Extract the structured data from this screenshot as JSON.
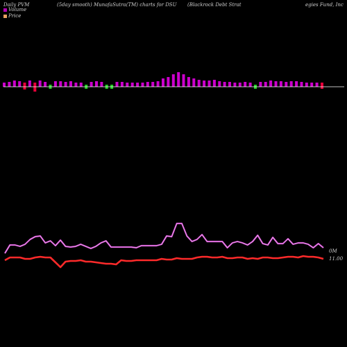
{
  "header": {
    "left": "Daily PVM",
    "mid": "(5day smooth) MunafaSutra(TM) charts for DSU",
    "right": "(Blackrock Debt Strat",
    "right2": "egies Fund, Inc"
  },
  "legend": {
    "items": [
      {
        "label": "Volume",
        "color": "#b400b4"
      },
      {
        "label": "Price",
        "color": "#e8a060"
      }
    ]
  },
  "chart_data": [
    {
      "type": "bar",
      "title": "",
      "ylabel": "",
      "xlabel": "",
      "baseline_color": "#ffffff",
      "colors": {
        "up": "#cc00cc",
        "down_red": "#e8003a",
        "down_green": "#22cc22"
      },
      "bars": [
        {
          "v": 6,
          "c": "up"
        },
        {
          "v": 7,
          "c": "up"
        },
        {
          "v": 9,
          "c": "up"
        },
        {
          "v": 8,
          "c": "up"
        },
        {
          "v": 10,
          "c": "down_red"
        },
        {
          "v": 9,
          "c": "up"
        },
        {
          "v": 13,
          "c": "down_red"
        },
        {
          "v": 9,
          "c": "up"
        },
        {
          "v": 7,
          "c": "up"
        },
        {
          "v": 6,
          "c": "down_green"
        },
        {
          "v": 8,
          "c": "up"
        },
        {
          "v": 8,
          "c": "up"
        },
        {
          "v": 7,
          "c": "up"
        },
        {
          "v": 8,
          "c": "up"
        },
        {
          "v": 6,
          "c": "up"
        },
        {
          "v": 6,
          "c": "up"
        },
        {
          "v": 6,
          "c": "down_green"
        },
        {
          "v": 7,
          "c": "up"
        },
        {
          "v": 8,
          "c": "up"
        },
        {
          "v": 7,
          "c": "up"
        },
        {
          "v": 6,
          "c": "down_green"
        },
        {
          "v": 6,
          "c": "down_green"
        },
        {
          "v": 7,
          "c": "up"
        },
        {
          "v": 7,
          "c": "up"
        },
        {
          "v": 6,
          "c": "up"
        },
        {
          "v": 6,
          "c": "up"
        },
        {
          "v": 6,
          "c": "up"
        },
        {
          "v": 6,
          "c": "up"
        },
        {
          "v": 7,
          "c": "up"
        },
        {
          "v": 7,
          "c": "up"
        },
        {
          "v": 8,
          "c": "up"
        },
        {
          "v": 12,
          "c": "up"
        },
        {
          "v": 14,
          "c": "up"
        },
        {
          "v": 18,
          "c": "up"
        },
        {
          "v": 21,
          "c": "up"
        },
        {
          "v": 18,
          "c": "up"
        },
        {
          "v": 14,
          "c": "up"
        },
        {
          "v": 12,
          "c": "up"
        },
        {
          "v": 10,
          "c": "up"
        },
        {
          "v": 9,
          "c": "up"
        },
        {
          "v": 9,
          "c": "up"
        },
        {
          "v": 10,
          "c": "up"
        },
        {
          "v": 8,
          "c": "up"
        },
        {
          "v": 7,
          "c": "up"
        },
        {
          "v": 7,
          "c": "up"
        },
        {
          "v": 6,
          "c": "up"
        },
        {
          "v": 6,
          "c": "up"
        },
        {
          "v": 7,
          "c": "up"
        },
        {
          "v": 6,
          "c": "up"
        },
        {
          "v": 6,
          "c": "down_green"
        },
        {
          "v": 7,
          "c": "up"
        },
        {
          "v": 7,
          "c": "up"
        },
        {
          "v": 9,
          "c": "up"
        },
        {
          "v": 8,
          "c": "up"
        },
        {
          "v": 8,
          "c": "up"
        },
        {
          "v": 7,
          "c": "up"
        },
        {
          "v": 8,
          "c": "up"
        },
        {
          "v": 8,
          "c": "up"
        },
        {
          "v": 7,
          "c": "up"
        },
        {
          "v": 6,
          "c": "up"
        },
        {
          "v": 6,
          "c": "up"
        },
        {
          "v": 6,
          "c": "up"
        },
        {
          "v": 9,
          "c": "down_red"
        }
      ]
    },
    {
      "type": "line",
      "title": "",
      "series": [
        {
          "color": "#cc44cc",
          "values": [
            30,
            42,
            42,
            40,
            43,
            50,
            54,
            55,
            45,
            48,
            41,
            49,
            40,
            39,
            40,
            43,
            40,
            37,
            40,
            45,
            48,
            39,
            39,
            39,
            39,
            39,
            38,
            41,
            41,
            41,
            41,
            43,
            55,
            54,
            73,
            73,
            55,
            47,
            50,
            57,
            47,
            47,
            47,
            47,
            38,
            45,
            47,
            45,
            42,
            47,
            56,
            44,
            42,
            53,
            44,
            44,
            51,
            43,
            45,
            45,
            43,
            38,
            44,
            38
          ]
        },
        {
          "color": "#ff2a2a",
          "values": [
            20,
            24,
            24,
            24,
            22,
            22,
            24,
            25,
            24,
            24,
            17,
            10,
            18,
            19,
            19,
            20,
            18,
            18,
            17,
            16,
            15,
            15,
            14,
            20,
            19,
            19,
            20,
            20,
            20,
            20,
            20,
            22,
            21,
            21,
            23,
            22,
            22,
            22,
            24,
            25,
            25,
            24,
            24,
            25,
            23,
            23,
            24,
            24,
            22,
            23,
            22,
            24,
            24,
            23,
            23,
            24,
            25,
            25,
            24,
            26,
            25,
            25,
            24,
            22
          ]
        }
      ],
      "y_labels": [
        "0M",
        "11.00"
      ]
    }
  ]
}
